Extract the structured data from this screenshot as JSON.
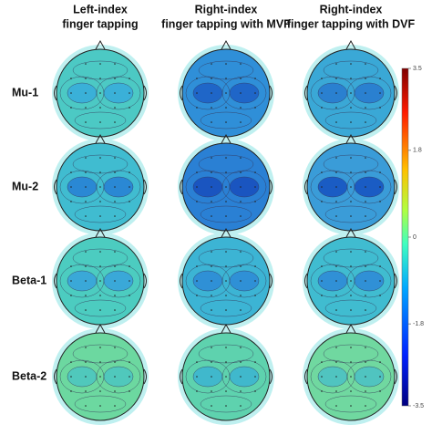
{
  "columns": [
    {
      "line1": "Left-index",
      "line2": "finger tapping"
    },
    {
      "line1": "Right-index",
      "line2": "finger tapping with MVF"
    },
    {
      "line1": "Right-index",
      "line2": "finger tapping with DVF"
    }
  ],
  "rows": [
    "Mu-1",
    "Mu-2",
    "Beta-1",
    "Beta-2"
  ],
  "colorbar": {
    "lim": [
      -3.5,
      3.5
    ],
    "ticks": [
      3.5,
      1.8,
      0,
      -1.8,
      -3.5
    ]
  }
}
